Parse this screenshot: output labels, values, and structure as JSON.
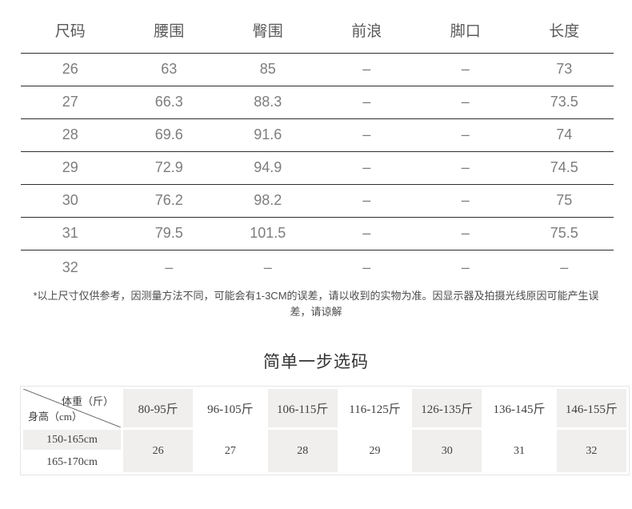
{
  "size_table": {
    "headers": [
      "尺码",
      "腰围",
      "臀围",
      "前浪",
      "脚口",
      "长度"
    ],
    "rows": [
      [
        "26",
        "63",
        "85",
        "–",
        "–",
        "73"
      ],
      [
        "27",
        "66.3",
        "88.3",
        "–",
        "–",
        "73.5"
      ],
      [
        "28",
        "69.6",
        "91.6",
        "–",
        "–",
        "74"
      ],
      [
        "29",
        "72.9",
        "94.9",
        "–",
        "–",
        "74.5"
      ],
      [
        "30",
        "76.2",
        "98.2",
        "–",
        "–",
        "75"
      ],
      [
        "31",
        "79.5",
        "101.5",
        "–",
        "–",
        "75.5"
      ],
      [
        "32",
        "–",
        "–",
        "–",
        "–",
        "–"
      ]
    ]
  },
  "disclaimer": "*以上尺寸仅供参考，因测量方法不同，可能会有1-3CM的误差，请以收到的实物为准。因显示器及拍摄光线原因可能产生误差，请谅解",
  "picker": {
    "title": "简单一步选码",
    "corner_top_right": "体重（斤）",
    "corner_bottom_left": "身高（cm）",
    "weight_headers": [
      "80-95斤",
      "96-105斤",
      "106-115斤",
      "116-125斤",
      "126-135斤",
      "136-145斤",
      "146-155斤"
    ],
    "height_rows": [
      "150-165cm",
      "165-170cm"
    ],
    "sizes": [
      "26",
      "27",
      "28",
      "29",
      "30",
      "31",
      "32"
    ]
  },
  "colors": {
    "page_bg": "#ffffff",
    "table_line": "#2e2e2e",
    "header_text": "#595959",
    "cell_text": "#7d7d7d",
    "note_text": "#4c4c4c",
    "title_text": "#333333",
    "picker_text": "#3f3f3f",
    "shaded_cell": "#f0efed",
    "picker_border": "#e6e6e6",
    "diagonal_line": "#6e6e6e"
  }
}
